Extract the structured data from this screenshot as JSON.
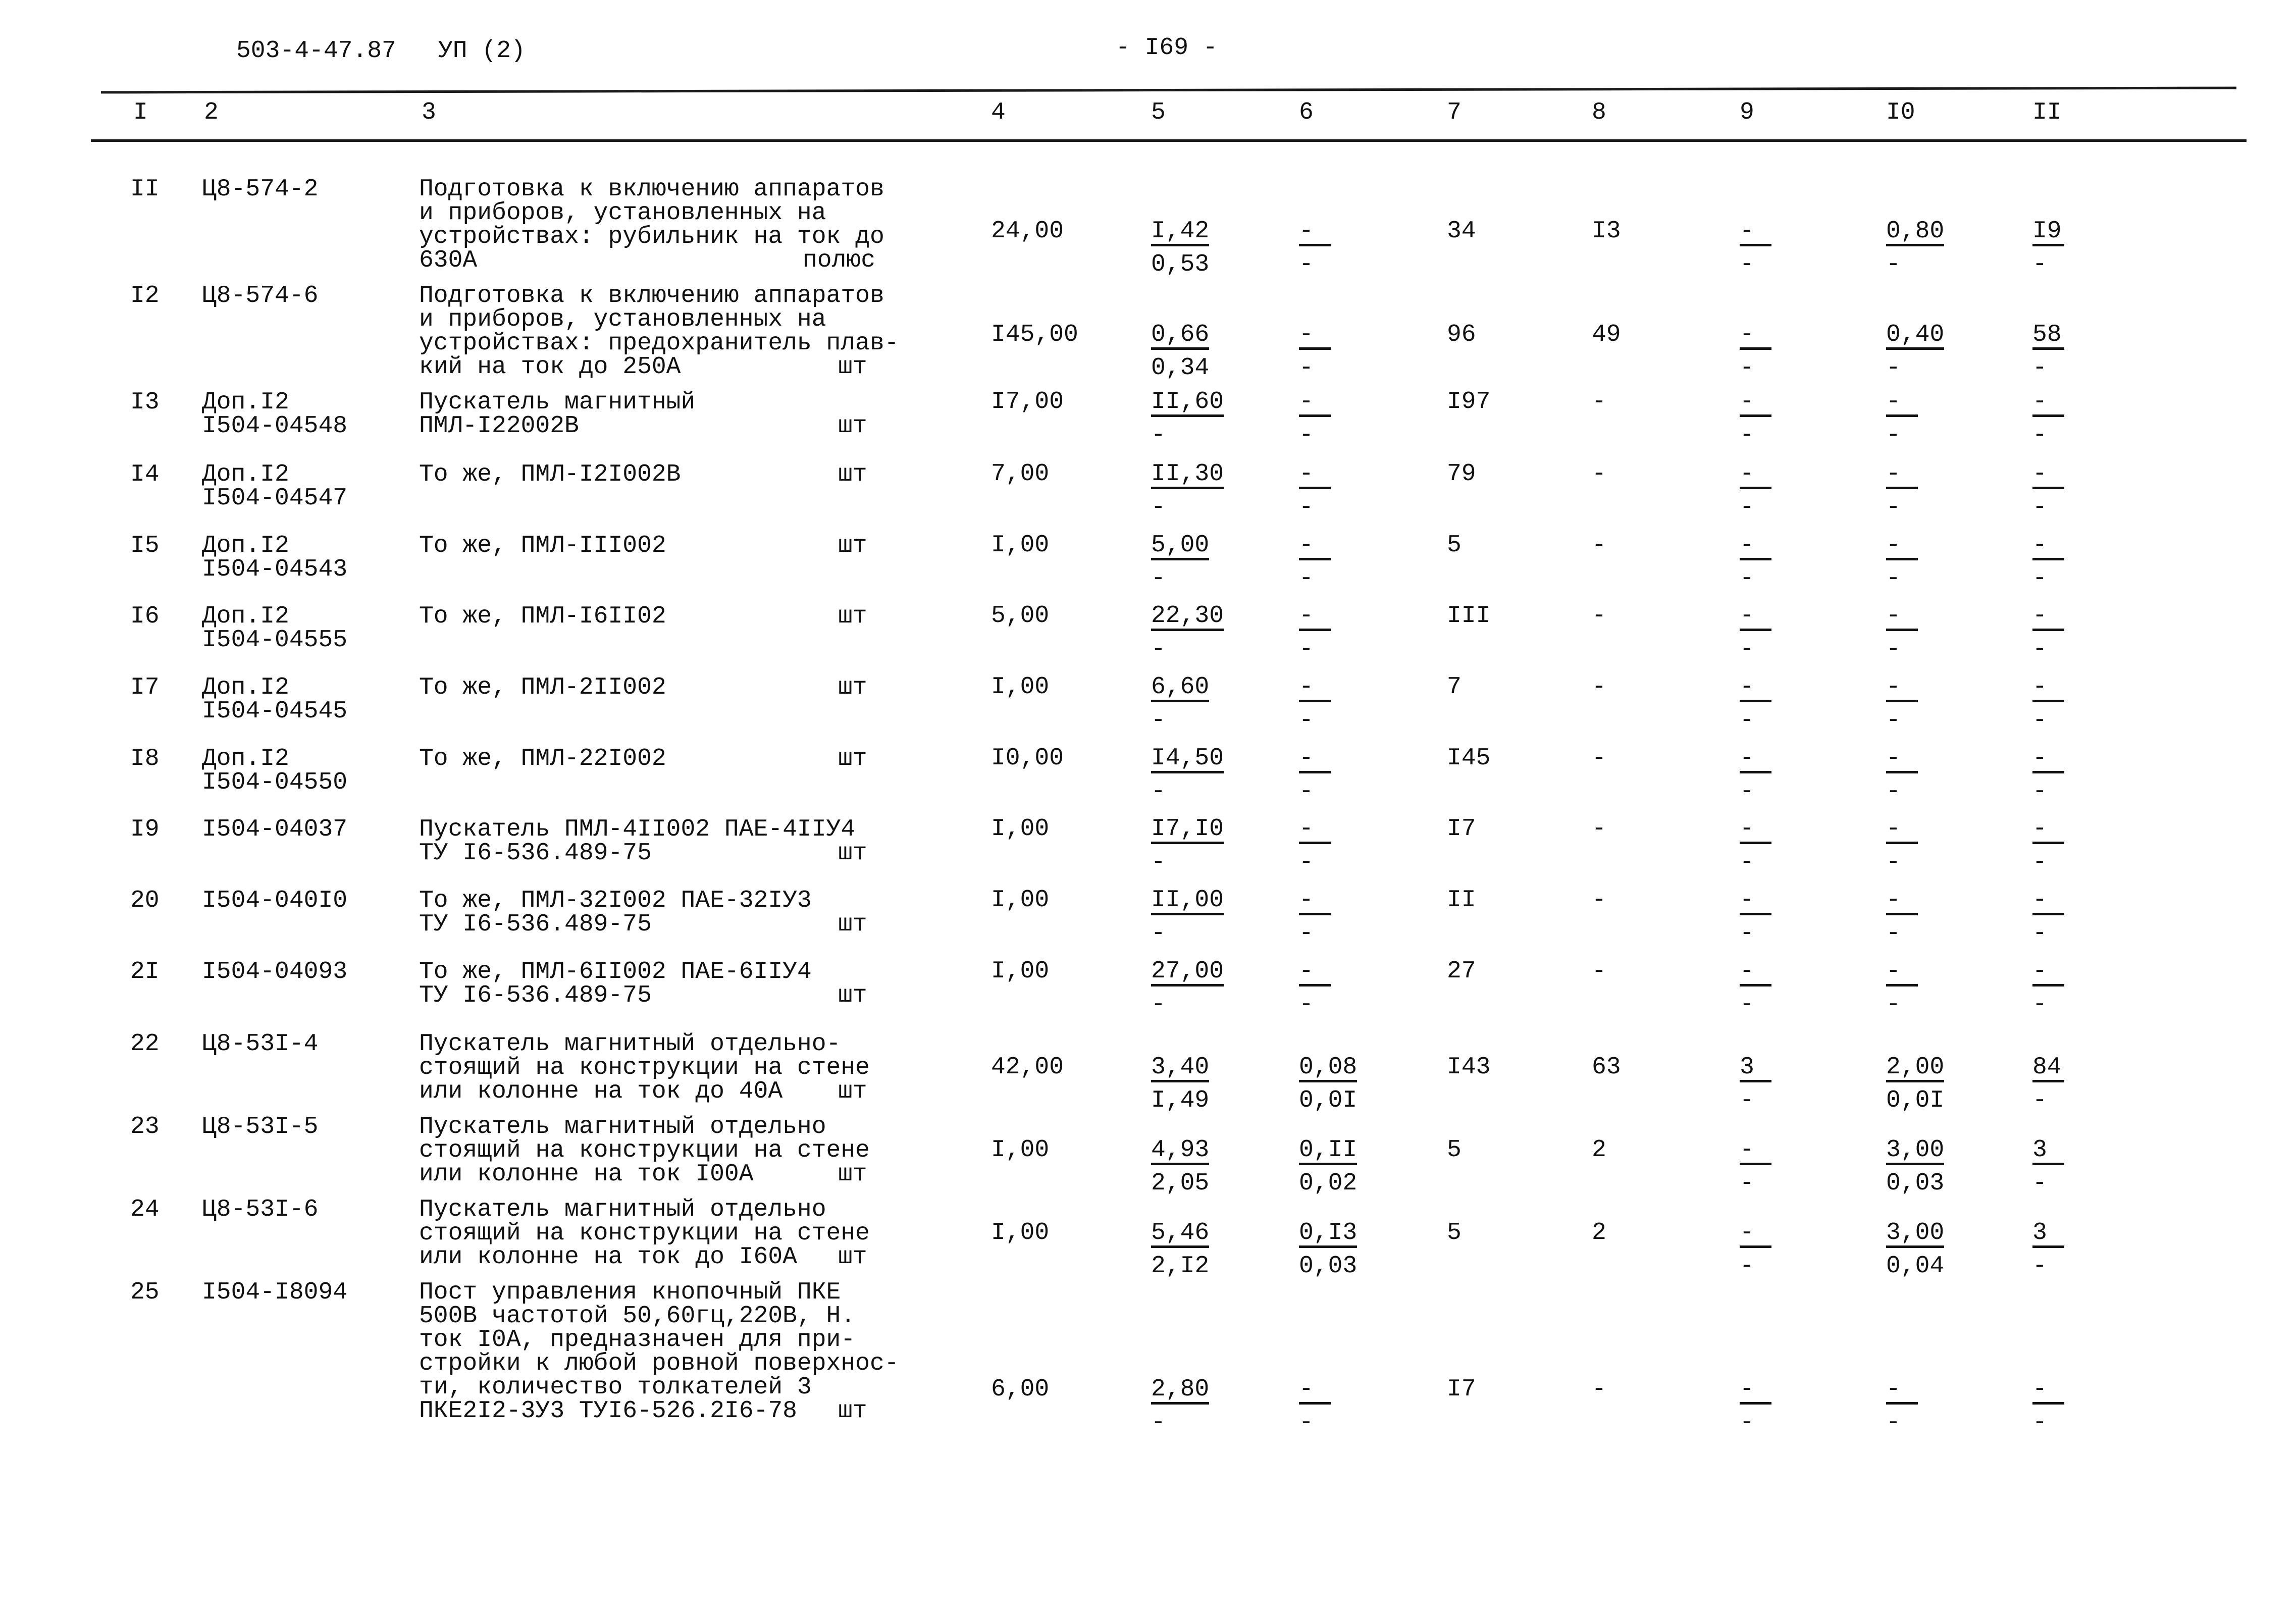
{
  "header": {
    "doc_code": "503-4-47.87",
    "album": "УП (2)",
    "page": "- I69 -"
  },
  "columns": [
    "I",
    "2",
    "3",
    "4",
    "5",
    "6",
    "7",
    "8",
    "9",
    "I0",
    "II"
  ],
  "rows": [
    {
      "num": "II",
      "code": [
        "Ц8-574-2"
      ],
      "desc": [
        "Подготовка к включению аппаратов",
        "и приборов, установленных на",
        "устройствах: рубильник на ток до",
        "630А"
      ],
      "unit": "полюс",
      "vals": [
        {
          "t": "24,00"
        },
        {
          "t": "I,42",
          "b": "0,53",
          "ul": true
        },
        {
          "t": "-",
          "b": "-",
          "ul": true
        },
        {
          "t": "34"
        },
        {
          "t": "I3"
        },
        {
          "t": "-",
          "b": "-",
          "ul": true
        },
        {
          "t": "0,80",
          "b": "-",
          "ul": true
        },
        {
          "t": "I9",
          "b": "-",
          "ul": true
        }
      ]
    },
    {
      "num": "I2",
      "code": [
        "Ц8-574-6"
      ],
      "desc": [
        "Подготовка к включению аппаратов",
        "и приборов, установленных на",
        "устройствах: предохранитель плав-",
        "кий на ток до 250А"
      ],
      "unit": "шт",
      "vals": [
        {
          "t": "I45,00"
        },
        {
          "t": "0,66",
          "b": "0,34",
          "ul": true
        },
        {
          "t": "-",
          "b": "-",
          "ul": true
        },
        {
          "t": "96"
        },
        {
          "t": "49"
        },
        {
          "t": "-",
          "b": "-",
          "ul": true
        },
        {
          "t": "0,40",
          "b": "-",
          "ul": true
        },
        {
          "t": "58",
          "b": "-",
          "ul": true
        }
      ]
    },
    {
      "num": "I3",
      "code": [
        "Доп.I2",
        "I504-04548"
      ],
      "desc": [
        "Пускатель магнитный",
        "ПМЛ-I22002В"
      ],
      "unit": "шт",
      "vals": [
        {
          "t": "I7,00"
        },
        {
          "t": "II,60",
          "b": "-",
          "ul": true
        },
        {
          "t": "-",
          "b": "-",
          "ul": true
        },
        {
          "t": "I97"
        },
        {
          "t": "-"
        },
        {
          "t": "-",
          "b": "-",
          "ul": true
        },
        {
          "t": "-",
          "b": "-",
          "ul": true
        },
        {
          "t": "-",
          "b": "-",
          "ul": true
        }
      ]
    },
    {
      "num": "I4",
      "code": [
        "Доп.I2",
        "I504-04547"
      ],
      "desc": [
        "То же, ПМЛ-I2I002В"
      ],
      "unit": "шт",
      "vals": [
        {
          "t": "7,00"
        },
        {
          "t": "II,30",
          "b": "-",
          "ul": true
        },
        {
          "t": "-",
          "b": "-",
          "ul": true
        },
        {
          "t": "79"
        },
        {
          "t": "-"
        },
        {
          "t": "-",
          "b": "-",
          "ul": true
        },
        {
          "t": "-",
          "b": "-",
          "ul": true
        },
        {
          "t": "-",
          "b": "-",
          "ul": true
        }
      ]
    },
    {
      "num": "I5",
      "code": [
        "Доп.I2",
        "I504-04543"
      ],
      "desc": [
        "То же, ПМЛ-III002"
      ],
      "unit": "шт",
      "vals": [
        {
          "t": "I,00"
        },
        {
          "t": "5,00",
          "b": "-",
          "ul": true
        },
        {
          "t": "-",
          "b": "-",
          "ul": true
        },
        {
          "t": "5"
        },
        {
          "t": "-"
        },
        {
          "t": "-",
          "b": "-",
          "ul": true
        },
        {
          "t": "-",
          "b": "-",
          "ul": true
        },
        {
          "t": "-",
          "b": "-",
          "ul": true
        }
      ]
    },
    {
      "num": "I6",
      "code": [
        "Доп.I2",
        "I504-04555"
      ],
      "desc": [
        "То же, ПМЛ-I6II02"
      ],
      "unit": "шт",
      "vals": [
        {
          "t": "5,00"
        },
        {
          "t": "22,30",
          "b": "-",
          "ul": true
        },
        {
          "t": "-",
          "b": "-",
          "ul": true
        },
        {
          "t": "III"
        },
        {
          "t": "-"
        },
        {
          "t": "-",
          "b": "-",
          "ul": true
        },
        {
          "t": "-",
          "b": "-",
          "ul": true
        },
        {
          "t": "-",
          "b": "-",
          "ul": true
        }
      ]
    },
    {
      "num": "I7",
      "code": [
        "Доп.I2",
        "I504-04545"
      ],
      "desc": [
        "То же, ПМЛ-2II002"
      ],
      "unit": "шт",
      "vals": [
        {
          "t": "I,00"
        },
        {
          "t": "6,60",
          "b": "-",
          "ul": true
        },
        {
          "t": "-",
          "b": "-",
          "ul": true
        },
        {
          "t": "7"
        },
        {
          "t": "-"
        },
        {
          "t": "-",
          "b": "-",
          "ul": true
        },
        {
          "t": "-",
          "b": "-",
          "ul": true
        },
        {
          "t": "-",
          "b": "-",
          "ul": true
        }
      ]
    },
    {
      "num": "I8",
      "code": [
        "Доп.I2",
        "I504-04550"
      ],
      "desc": [
        "То же, ПМЛ-22I002"
      ],
      "unit": "шт",
      "vals": [
        {
          "t": "I0,00"
        },
        {
          "t": "I4,50",
          "b": "-",
          "ul": true
        },
        {
          "t": "-",
          "b": "-",
          "ul": true
        },
        {
          "t": "I45"
        },
        {
          "t": "-"
        },
        {
          "t": "-",
          "b": "-",
          "ul": true
        },
        {
          "t": "-",
          "b": "-",
          "ul": true
        },
        {
          "t": "-",
          "b": "-",
          "ul": true
        }
      ]
    },
    {
      "num": "I9",
      "code": [
        "I504-04037"
      ],
      "desc": [
        "Пускатель ПМЛ-4II002 ПАЕ-4IIУ4",
        "ТУ I6-536.489-75"
      ],
      "unit": "шт",
      "vals": [
        {
          "t": "I,00"
        },
        {
          "t": "I7,I0",
          "b": "-",
          "ul": true
        },
        {
          "t": "-",
          "b": "-",
          "ul": true
        },
        {
          "t": "I7"
        },
        {
          "t": "-"
        },
        {
          "t": "-",
          "b": "-",
          "ul": true
        },
        {
          "t": "-",
          "b": "-",
          "ul": true
        },
        {
          "t": "-",
          "b": "-",
          "ul": true
        }
      ]
    },
    {
      "num": "20",
      "code": [
        "I504-040I0"
      ],
      "desc": [
        "То же, ПМЛ-32I002 ПАЕ-32IУ3",
        "ТУ I6-536.489-75"
      ],
      "unit": "шт",
      "vals": [
        {
          "t": "I,00"
        },
        {
          "t": "II,00",
          "b": "-",
          "ul": true
        },
        {
          "t": "-",
          "b": "-",
          "ul": true
        },
        {
          "t": "II"
        },
        {
          "t": "-"
        },
        {
          "t": "-",
          "b": "-",
          "ul": true
        },
        {
          "t": "-",
          "b": "-",
          "ul": true
        },
        {
          "t": "-",
          "b": "-",
          "ul": true
        }
      ]
    },
    {
      "num": "2I",
      "code": [
        "I504-04093"
      ],
      "desc": [
        "То же, ПМЛ-6II002 ПАЕ-6IIУ4",
        "ТУ I6-536.489-75"
      ],
      "unit": "шт",
      "vals": [
        {
          "t": "I,00"
        },
        {
          "t": "27,00",
          "b": "-",
          "ul": true
        },
        {
          "t": "-",
          "b": "-",
          "ul": true
        },
        {
          "t": "27"
        },
        {
          "t": "-"
        },
        {
          "t": "-",
          "b": "-",
          "ul": true
        },
        {
          "t": "-",
          "b": "-",
          "ul": true
        },
        {
          "t": "-",
          "b": "-",
          "ul": true
        }
      ]
    },
    {
      "num": "22",
      "code": [
        "Ц8-53I-4"
      ],
      "desc": [
        "Пускатель магнитный отдельно-",
        "стоящий на конструкции на стене",
        "или колонне на ток до 40А"
      ],
      "unit": "шт",
      "vals": [
        {
          "t": "42,00"
        },
        {
          "t": "3,40",
          "b": "I,49",
          "ul": true
        },
        {
          "t": "0,08",
          "b": "0,0I",
          "ul": true
        },
        {
          "t": "I43"
        },
        {
          "t": "63"
        },
        {
          "t": "3",
          "b": "-",
          "ul": true
        },
        {
          "t": "2,00",
          "b": "0,0I",
          "ul": true
        },
        {
          "t": "84",
          "b": "-",
          "ul": true
        }
      ]
    },
    {
      "num": "23",
      "code": [
        "Ц8-53I-5"
      ],
      "desc": [
        "Пускатель магнитный отдельно",
        "стоящий на конструкции на стене",
        "или колонне на ток I00А"
      ],
      "unit": "шт",
      "vals": [
        {
          "t": "I,00"
        },
        {
          "t": "4,93",
          "b": "2,05",
          "ul": true
        },
        {
          "t": "0,II",
          "b": "0,02",
          "ul": true
        },
        {
          "t": "5"
        },
        {
          "t": "2"
        },
        {
          "t": "-",
          "b": "-",
          "ul": true
        },
        {
          "t": "3,00",
          "b": "0,03",
          "ul": true
        },
        {
          "t": "3",
          "b": "-",
          "ul": true
        }
      ]
    },
    {
      "num": "24",
      "code": [
        "Ц8-53I-6"
      ],
      "desc": [
        "Пускатель магнитный отдельно",
        "стоящий на конструкции на стене",
        "или колонне на ток до I60А"
      ],
      "unit": "шт",
      "vals": [
        {
          "t": "I,00"
        },
        {
          "t": "5,46",
          "b": "2,I2",
          "ul": true
        },
        {
          "t": "0,I3",
          "b": "0,03",
          "ul": true
        },
        {
          "t": "5"
        },
        {
          "t": "2"
        },
        {
          "t": "-",
          "b": "-",
          "ul": true
        },
        {
          "t": "3,00",
          "b": "0,04",
          "ul": true
        },
        {
          "t": "3",
          "b": "-",
          "ul": true
        }
      ]
    },
    {
      "num": "25",
      "code": [
        "I504-I8094"
      ],
      "desc": [
        "Пост управления кнопочный ПКЕ",
        "500В частотой 50,60гц,220В, Н.",
        "ток I0А, предназначен для при-",
        "стройки к любой ровной поверхнос-",
        "ти, количество толкателей 3",
        "ПКЕ2I2-3У3 ТУI6-526.2I6-78"
      ],
      "unit": "шт",
      "vals": [
        {
          "t": "6,00"
        },
        {
          "t": "2,80",
          "b": "-",
          "ul": true
        },
        {
          "t": "-",
          "b": "-",
          "ul": true
        },
        {
          "t": "I7"
        },
        {
          "t": "-"
        },
        {
          "t": "-",
          "b": "-",
          "ul": true
        },
        {
          "t": "-",
          "b": "-",
          "ul": true
        },
        {
          "t": "-",
          "b": "-",
          "ul": true
        }
      ]
    }
  ]
}
